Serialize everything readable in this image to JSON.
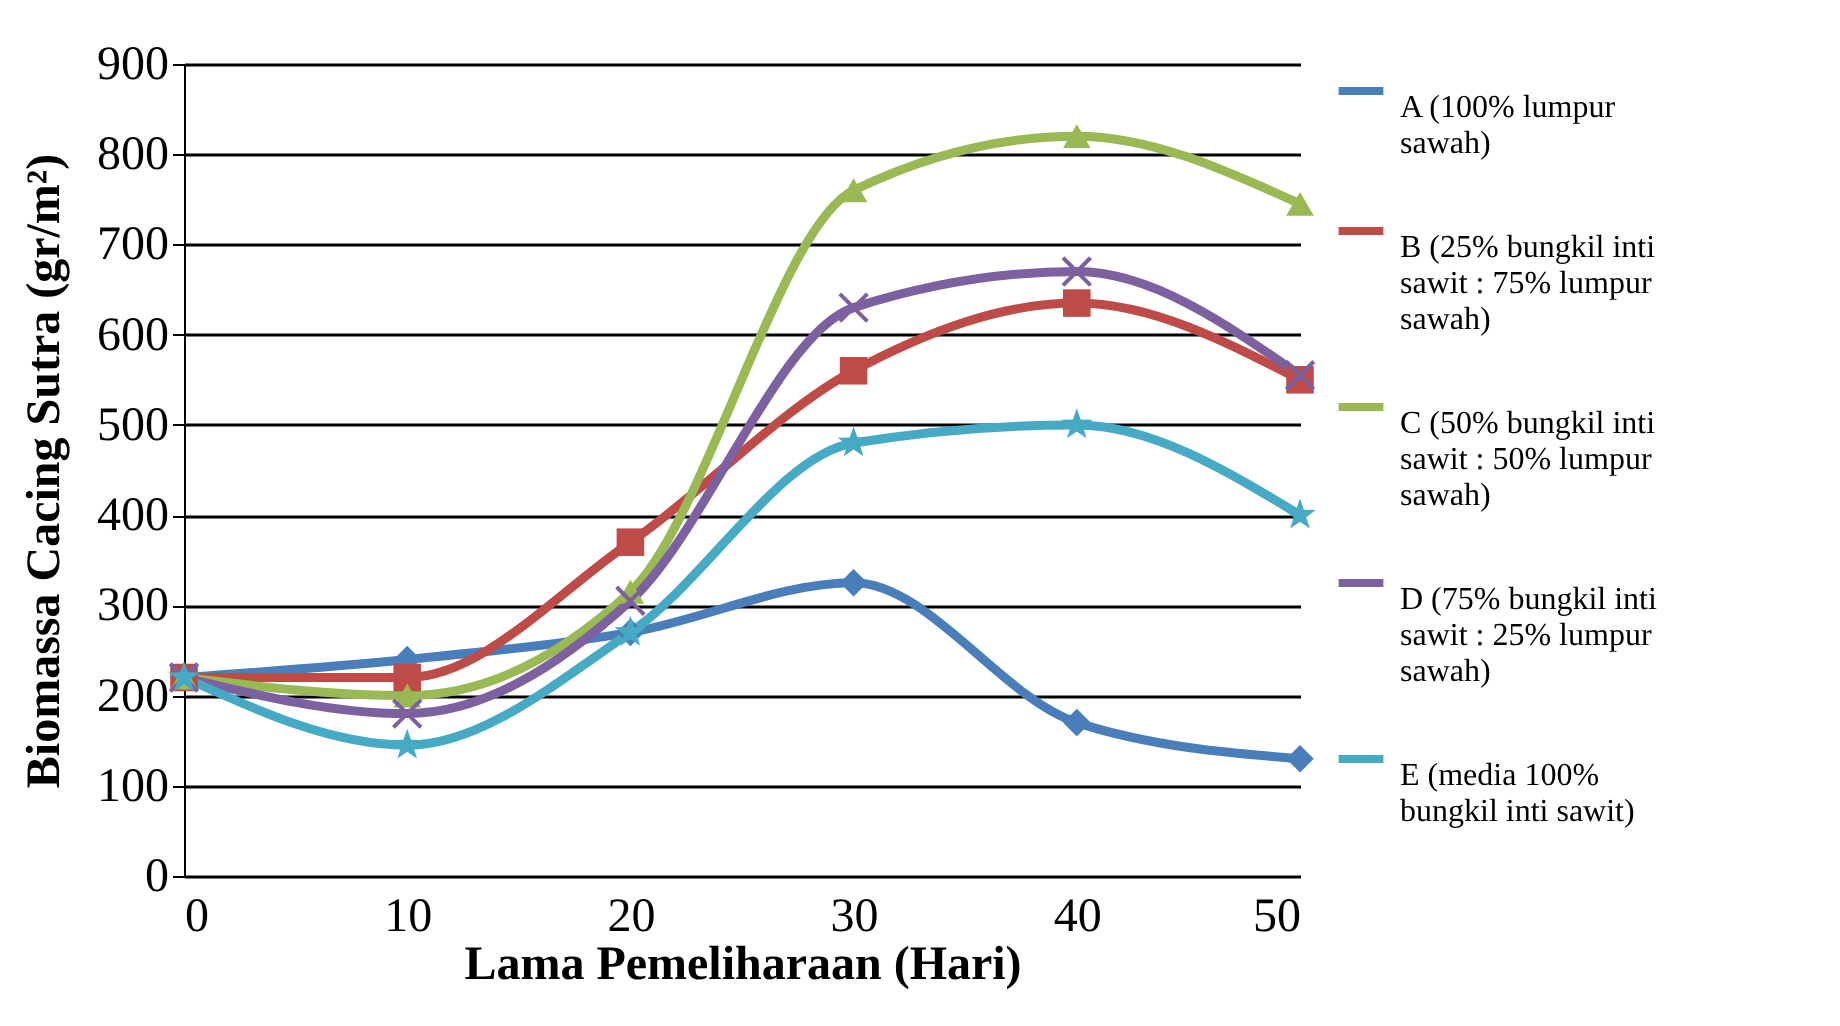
{
  "chart_data": {
    "type": "line",
    "xlabel": "Lama Pemeliharaan (Hari)",
    "ylabel": "Biomassa Cacing Sutra (gr/m²)",
    "x": [
      0,
      10,
      20,
      30,
      40,
      50
    ],
    "xlim": [
      0,
      50
    ],
    "xticks": [
      0,
      10,
      20,
      30,
      40,
      50
    ],
    "ylim": [
      0,
      900
    ],
    "yticks": [
      0,
      100,
      200,
      300,
      400,
      500,
      600,
      700,
      800,
      900
    ],
    "grid": "y",
    "legend": "right",
    "series": [
      {
        "name": "A (100% lumpur sawah)",
        "color": "#4a7ebb",
        "marker": "diamond",
        "values": [
          220,
          240,
          270,
          325,
          170,
          130
        ]
      },
      {
        "name": "B (25% bungkil inti sawit : 75% lumpur sawah)",
        "color": "#be4b48",
        "marker": "square",
        "values": [
          220,
          220,
          370,
          560,
          635,
          550
        ]
      },
      {
        "name": "C (50% bungkil inti sawit : 50% lumpur sawah)",
        "color": "#98b954",
        "marker": "triangle",
        "values": [
          220,
          200,
          315,
          760,
          820,
          745
        ]
      },
      {
        "name": "D (75% bungkil inti sawit : 25% lumpur sawah)",
        "color": "#7d60a0",
        "marker": "cross",
        "values": [
          220,
          180,
          305,
          630,
          670,
          555
        ]
      },
      {
        "name": "E (media 100% bungkil inti sawit)",
        "color": "#46aac5",
        "marker": "star",
        "values": [
          220,
          145,
          270,
          480,
          500,
          400
        ]
      }
    ]
  }
}
